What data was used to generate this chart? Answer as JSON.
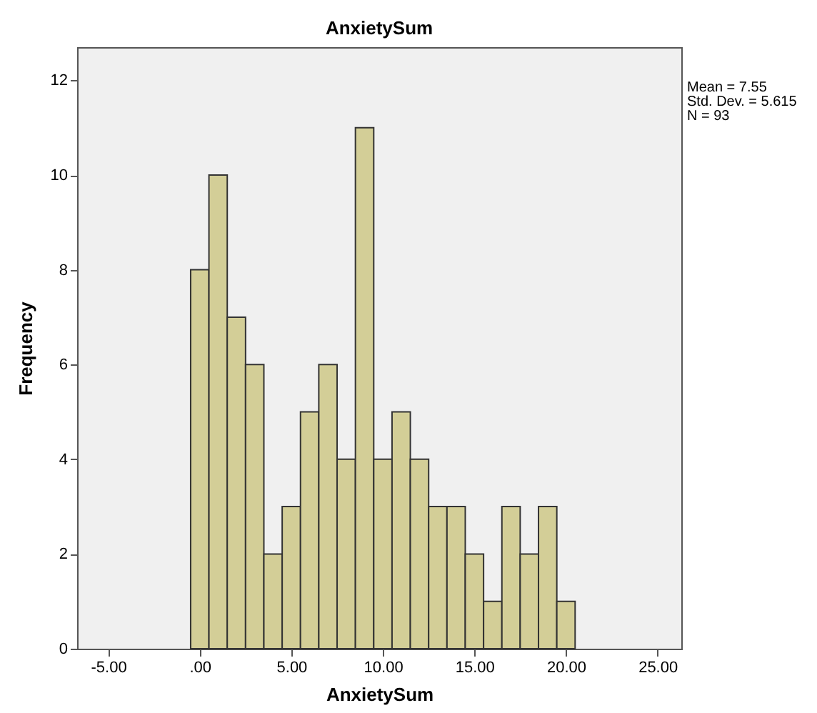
{
  "chart_data": {
    "type": "histogram",
    "title": "AnxietySum",
    "xlabel": "AnxietySum",
    "ylabel": "Frequency",
    "bins": [
      -0.5,
      0.5,
      1.5,
      2.5,
      3.5,
      4.5,
      5.5,
      6.5,
      7.5,
      8.5,
      9.5,
      10.5,
      11.5,
      12.5,
      13.5,
      14.5,
      15.5,
      16.5,
      17.5,
      18.5,
      19.5,
      20.5
    ],
    "values": [
      8,
      10,
      7,
      6,
      2,
      3,
      5,
      6,
      4,
      11,
      4,
      5,
      4,
      3,
      3,
      2,
      1,
      3,
      2,
      3,
      1
    ],
    "color": "#d3ce97",
    "xlim": [
      -6.7,
      26.3
    ],
    "xticks": [
      {
        "value": -5,
        "label": "-5.00"
      },
      {
        "value": 0,
        "label": ".00"
      },
      {
        "value": 5,
        "label": "5.00"
      },
      {
        "value": 10,
        "label": "10.00"
      },
      {
        "value": 15,
        "label": "15.00"
      },
      {
        "value": 20,
        "label": "20.00"
      },
      {
        "value": 25,
        "label": "25.00"
      }
    ],
    "ylim": [
      0,
      12.7
    ],
    "yticks": [
      0,
      2,
      4,
      6,
      8,
      10,
      12
    ],
    "grid": false,
    "annotations": [
      "Mean = 7.55",
      "Std. Dev. = 5.615",
      "N = 93"
    ]
  }
}
